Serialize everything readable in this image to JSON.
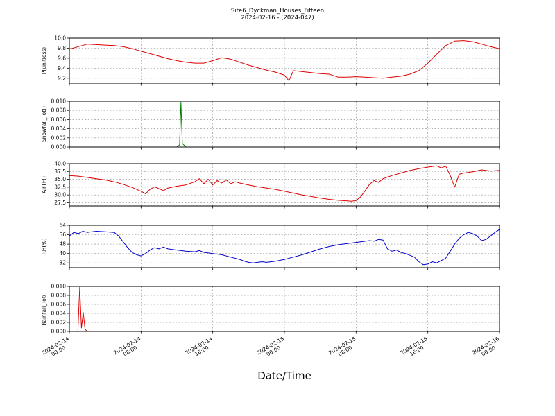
{
  "figure": {
    "title_line1": "Site6_Dyckman_Houses_Fifteen",
    "title_line2": "2024-02-16 - (2024-047)",
    "xlabel": "Date/Time",
    "background": "#ffffff"
  },
  "chart_data": {
    "type": "line",
    "x_axis": {
      "unit": "hours from 2024-02-14 00:00",
      "range": [
        0,
        48
      ],
      "tick_hours": [
        0,
        8,
        16,
        24,
        32,
        40,
        48
      ],
      "tick_labels": [
        [
          "2024-02-14",
          "00:00"
        ],
        [
          "2024-02-14",
          "08:00"
        ],
        [
          "2024-02-14",
          "16:00"
        ],
        [
          "2024-02-15",
          "00:00"
        ],
        [
          "2024-02-15",
          "08:00"
        ],
        [
          "2024-02-15",
          "16:00"
        ],
        [
          "2024-02-16",
          "00:00"
        ]
      ]
    },
    "subplots": [
      {
        "id": "p",
        "ylabel": "P(unitless)",
        "color": "#dd0000",
        "ylim": [
          9.1,
          10.0
        ],
        "ytick_values": [
          9.2,
          9.4,
          9.6,
          9.8,
          10.0
        ],
        "ytick_labels": [
          "9.2",
          "9.4",
          "9.6",
          "9.8",
          "10.0"
        ],
        "x": [
          0,
          1,
          2,
          3,
          4,
          5,
          6,
          7,
          8,
          9,
          10,
          11,
          12,
          13,
          14,
          15,
          16,
          17,
          18,
          19,
          20,
          21,
          22,
          23,
          24,
          24.5,
          25,
          26,
          27,
          28,
          29,
          30,
          31,
          32,
          33,
          34,
          35,
          36,
          37,
          38,
          39,
          40,
          41,
          42,
          43,
          44,
          45,
          46,
          47,
          48
        ],
        "y": [
          9.78,
          9.83,
          9.88,
          9.87,
          9.86,
          9.85,
          9.83,
          9.79,
          9.74,
          9.69,
          9.64,
          9.59,
          9.55,
          9.52,
          9.5,
          9.5,
          9.55,
          9.61,
          9.58,
          9.52,
          9.46,
          9.41,
          9.36,
          9.32,
          9.26,
          9.15,
          9.35,
          9.33,
          9.31,
          9.29,
          9.28,
          9.22,
          9.22,
          9.23,
          9.22,
          9.21,
          9.2,
          9.22,
          9.24,
          9.28,
          9.35,
          9.5,
          9.68,
          9.85,
          9.94,
          9.95,
          9.93,
          9.88,
          9.83,
          9.79
        ]
      },
      {
        "id": "snowfall",
        "ylabel": "Snowfall_Tot()",
        "color": "#008000",
        "ylim": [
          0,
          0.01
        ],
        "ytick_values": [
          0,
          0.002,
          0.004,
          0.006,
          0.008,
          0.01
        ],
        "ytick_labels": [
          "0.000",
          "0.002",
          "0.004",
          "0.006",
          "0.008",
          "0.010"
        ],
        "x": [
          0,
          12.0,
          12.3,
          12.45,
          12.6,
          13.0,
          48
        ],
        "y": [
          0,
          0,
          0.0005,
          0.0098,
          0.0008,
          0,
          0
        ]
      },
      {
        "id": "airtf",
        "ylabel": "AirTF()",
        "color": "#dd0000",
        "ylim": [
          26.5,
          40.0
        ],
        "ytick_values": [
          27.5,
          30.0,
          32.5,
          35.0,
          37.5,
          40.0
        ],
        "ytick_labels": [
          "27.5",
          "30.0",
          "32.5",
          "35.0",
          "37.5",
          "40.0"
        ],
        "x": [
          0,
          1,
          2,
          3,
          4,
          5,
          6,
          7,
          8,
          8.5,
          9,
          9.5,
          10,
          10.5,
          11,
          12,
          13,
          14,
          14.5,
          15,
          15.5,
          16,
          16.5,
          17,
          17.5,
          18,
          18.5,
          19,
          20,
          21,
          22,
          23,
          24,
          25,
          26,
          27,
          28,
          29,
          30,
          31,
          31.5,
          32,
          32.5,
          33,
          33.5,
          34,
          34.5,
          35,
          36,
          37,
          38,
          39,
          40,
          41,
          41.5,
          42,
          42.5,
          43,
          43.5,
          44,
          45,
          46,
          47,
          48
        ],
        "y": [
          36.2,
          36.0,
          35.6,
          35.2,
          34.8,
          34.2,
          33.4,
          32.4,
          31.2,
          30.4,
          31.8,
          32.6,
          32.0,
          31.4,
          32.2,
          32.8,
          33.2,
          34.2,
          35.2,
          33.6,
          35.0,
          33.2,
          34.6,
          33.8,
          34.8,
          33.6,
          34.2,
          33.8,
          33.2,
          32.6,
          32.2,
          31.8,
          31.2,
          30.6,
          30.0,
          29.5,
          29.0,
          28.6,
          28.3,
          28.1,
          28.0,
          28.2,
          29.4,
          31.4,
          33.4,
          34.6,
          34.0,
          35.2,
          36.2,
          37.0,
          37.8,
          38.4,
          38.9,
          39.3,
          38.6,
          39.2,
          36.2,
          32.5,
          36.6,
          37.0,
          37.4,
          38.0,
          37.6,
          37.8
        ]
      },
      {
        "id": "rh",
        "ylabel": "RH(%)",
        "color": "#0000cc",
        "ylim": [
          28,
          64
        ],
        "ytick_values": [
          32,
          40,
          48,
          56,
          64
        ],
        "ytick_labels": [
          "32",
          "40",
          "48",
          "56",
          "64"
        ],
        "x": [
          0,
          0.5,
          1,
          1.5,
          2,
          3,
          4,
          5,
          5.5,
          6,
          6.5,
          7,
          7.5,
          8,
          8.5,
          9,
          9.5,
          10,
          10.5,
          11,
          12,
          13,
          14,
          14.5,
          15,
          16,
          17,
          18,
          19,
          19.5,
          20,
          20.5,
          21,
          21.5,
          22,
          23,
          24,
          25,
          26,
          27,
          28,
          29,
          30,
          31,
          32,
          33,
          33.5,
          34,
          34.5,
          35,
          35.5,
          36,
          36.5,
          37,
          37.5,
          38,
          38.5,
          39,
          39.5,
          40,
          40.5,
          41,
          41.5,
          42,
          42.5,
          43,
          43.5,
          44,
          44.5,
          45,
          45.5,
          46,
          46.5,
          47,
          47.5,
          48
        ],
        "y": [
          55,
          58,
          57,
          59,
          58,
          59,
          58.5,
          58,
          55,
          50,
          45,
          41,
          39,
          38,
          40,
          43,
          45,
          44,
          45.5,
          44,
          43,
          42,
          41.5,
          42.5,
          41,
          40,
          39,
          37,
          35,
          33.5,
          32.5,
          32,
          32.5,
          33,
          32.5,
          33.5,
          35,
          37,
          39,
          41.5,
          44,
          46,
          47.5,
          48.5,
          49.5,
          50.5,
          51,
          50.5,
          52,
          51.5,
          44,
          42,
          43,
          41,
          40,
          38.5,
          37,
          33,
          30.5,
          31,
          33,
          32,
          34,
          36,
          42,
          48,
          53,
          56,
          58,
          57,
          55,
          51,
          52,
          55,
          58,
          60.5
        ]
      },
      {
        "id": "rainfall",
        "ylabel": "Rainfall_Tot()",
        "color": "#dd0000",
        "ylim": [
          0,
          0.01
        ],
        "ytick_values": [
          0,
          0.002,
          0.004,
          0.006,
          0.008,
          0.01
        ],
        "ytick_labels": [
          "0.000",
          "0.002",
          "0.004",
          "0.006",
          "0.008",
          "0.010"
        ],
        "x": [
          0,
          0.95,
          1.15,
          1.35,
          1.55,
          1.75,
          2.0,
          48
        ],
        "y": [
          0,
          0,
          0.0098,
          0.0008,
          0.0042,
          0.0005,
          0,
          0
        ]
      }
    ]
  }
}
